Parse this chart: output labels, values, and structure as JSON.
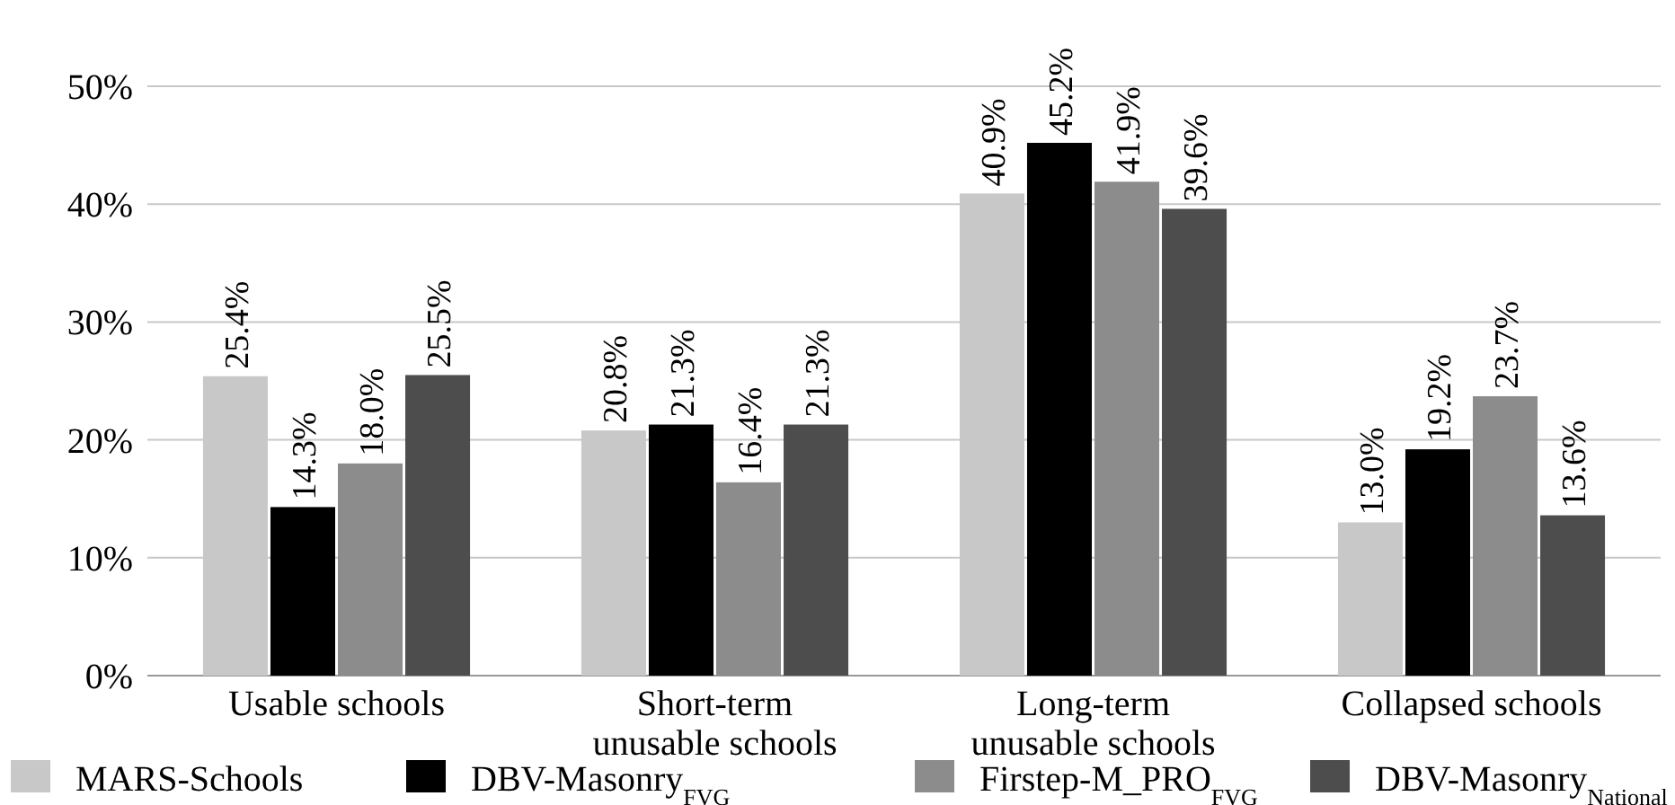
{
  "chart_data": {
    "type": "bar",
    "categories": [
      "Usable schools",
      "Short-term unusable schools",
      "Long-term unusable schools",
      "Collapsed schools"
    ],
    "series": [
      {
        "name": "MARS-Schools",
        "color": "#c8c8c8",
        "values": [
          25.4,
          20.8,
          40.9,
          13.0
        ],
        "value_labels": [
          "25.4%",
          "20.8%",
          "40.9%",
          "13.0%"
        ]
      },
      {
        "name": "DBV-Masonry$_{FVG}$",
        "color": "#000000",
        "values": [
          14.3,
          21.3,
          45.2,
          19.2
        ],
        "value_labels": [
          "14.3%",
          "21.3%",
          "45.2%",
          "19.2%"
        ]
      },
      {
        "name": "Firstep-M_PRO$_{FVG}$",
        "color": "#8c8c8c",
        "values": [
          18.0,
          16.4,
          41.9,
          23.7
        ],
        "value_labels": [
          "18.0%",
          "16.4%",
          "41.9%",
          "23.7%"
        ]
      },
      {
        "name": "DBV-Masonry$_{National}$",
        "color": "#4d4d4d",
        "values": [
          25.5,
          21.3,
          39.6,
          13.6
        ],
        "value_labels": [
          "25.5%",
          "21.3%",
          "39.6%",
          "13.6%"
        ]
      }
    ],
    "ylim": [
      0,
      50
    ],
    "yticks": [
      {
        "value": 0,
        "label": "0%"
      },
      {
        "value": 10,
        "label": "10%"
      },
      {
        "value": 20,
        "label": "20%"
      },
      {
        "value": 30,
        "label": "30%"
      },
      {
        "value": 40,
        "label": "40%"
      },
      {
        "value": 50,
        "label": "50%"
      }
    ],
    "grid": "y",
    "legend": "bottom"
  }
}
